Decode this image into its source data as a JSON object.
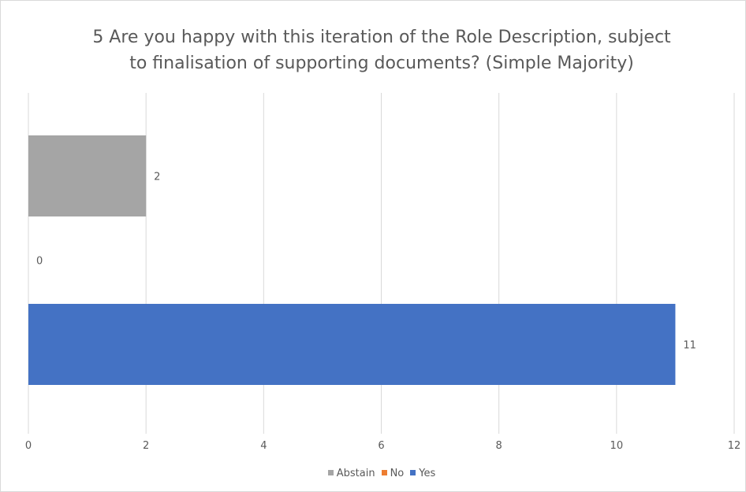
{
  "chart_data": {
    "type": "bar",
    "orientation": "horizontal",
    "title": "5 Are you happy with this iteration of the Role Description, subject to finalisation of supporting documents? (Simple Majority)",
    "title_lines": [
      "5 Are you happy with this iteration of the Role Description, subject",
      "to finalisation of supporting documents? (Simple Majority)"
    ],
    "xlabel": "",
    "ylabel": "",
    "xlim": [
      0,
      12
    ],
    "x_ticks": [
      0,
      2,
      4,
      6,
      8,
      10,
      12
    ],
    "x_tick_labels": [
      "0",
      "2",
      "4",
      "6",
      "8",
      "10",
      "12"
    ],
    "grid": true,
    "data_labels": true,
    "legend_position": "bottom",
    "series": [
      {
        "name": "Abstain",
        "value": 2,
        "color": "#a5a5a5"
      },
      {
        "name": "No",
        "value": 0,
        "color": "#ed7d31"
      },
      {
        "name": "Yes",
        "value": 11,
        "color": "#4472c4"
      }
    ]
  },
  "colors": {
    "gridline": "#d9d9d9",
    "text": "#595959"
  }
}
